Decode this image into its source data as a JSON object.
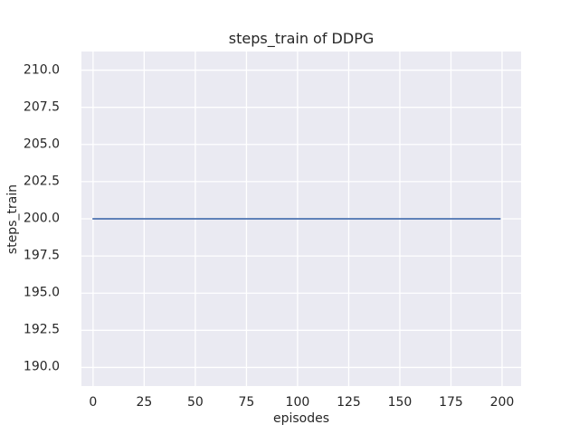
{
  "figure": {
    "background": "#ffffff",
    "plot_background": "#eaeaf2",
    "grid_color": "#ffffff",
    "text_color": "#262626",
    "line_color": "#4c72b0"
  },
  "chart_data": {
    "type": "line",
    "title": "steps_train of DDPG",
    "xlabel": "episodes",
    "ylabel": "steps_train",
    "xlim": [
      -5.7,
      209.3
    ],
    "ylim": [
      188.75,
      211.25
    ],
    "xticks": [
      0,
      25,
      50,
      75,
      100,
      125,
      150,
      175,
      200
    ],
    "xtick_labels": [
      "0",
      "25",
      "50",
      "75",
      "100",
      "125",
      "150",
      "175",
      "200"
    ],
    "yticks": [
      190.0,
      192.5,
      195.0,
      197.5,
      200.0,
      202.5,
      205.0,
      207.5,
      210.0
    ],
    "ytick_labels": [
      "190.0",
      "192.5",
      "195.0",
      "197.5",
      "200.0",
      "202.5",
      "205.0",
      "207.5",
      "210.0"
    ],
    "grid": true,
    "legend": false,
    "series": [
      {
        "name": "steps_train",
        "color": "#4c72b0",
        "note": "constant value 200 for all episodes 0-199",
        "constant_value": 200,
        "x": [
          0,
          199
        ],
        "y": [
          200,
          200
        ]
      }
    ]
  }
}
